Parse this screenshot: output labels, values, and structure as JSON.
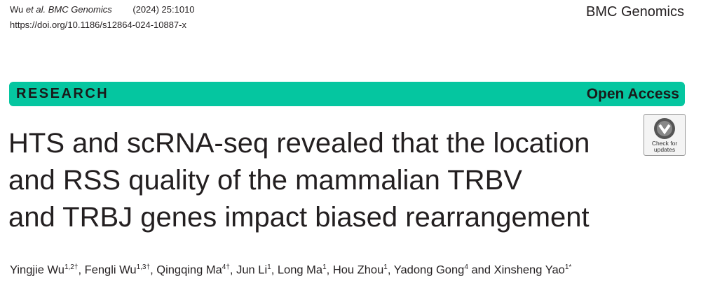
{
  "header": {
    "citation": {
      "author": "Wu",
      "etal": "et al.",
      "journal": "BMC Genomics",
      "volume": "(2024) 25:1010"
    },
    "doi": "https://doi.org/10.1186/s12864-024-10887-x",
    "brand": "BMC Genomics"
  },
  "banner": {
    "type": "RESEARCH",
    "access": "Open Access"
  },
  "title": {
    "lines": [
      "HTS and scRNA-seq revealed that the location",
      "and RSS quality of the mammalian TRBV",
      "and TRBJ genes impact biased rearrangement"
    ]
  },
  "badge": {
    "line1": "Check for",
    "line2": "updates"
  },
  "authors": [
    {
      "name": "Yingjie Wu",
      "affil": "1,2†",
      "sep": ", "
    },
    {
      "name": "Fengli Wu",
      "affil": "1,3†",
      "sep": ", "
    },
    {
      "name": "Qingqing Ma",
      "affil": "4†",
      "sep": ", "
    },
    {
      "name": "Jun Li",
      "affil": "1",
      "sep": ", "
    },
    {
      "name": "Long Ma",
      "affil": "1",
      "sep": ", "
    },
    {
      "name": "Hou Zhou",
      "affil": "1",
      "sep": ", "
    },
    {
      "name": "Yadong Gong",
      "affil": "4",
      "sep": " and "
    },
    {
      "name": "Xinsheng Yao",
      "affil": "1*"
    }
  ]
}
